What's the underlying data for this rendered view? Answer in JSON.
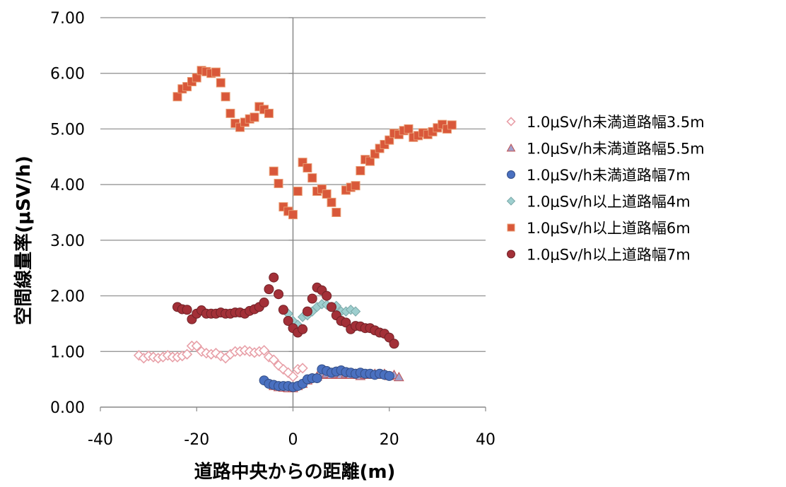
{
  "chart_data": {
    "type": "scatter",
    "xlabel": "道路中央からの距離(m)",
    "ylabel": "空間線量率(μSV/h)",
    "xlim": [
      -40,
      40
    ],
    "ylim": [
      0,
      7
    ],
    "x_ticks": [
      "-40",
      "-20",
      "0",
      "20",
      "40"
    ],
    "y_ticks": [
      "0.00",
      "1.00",
      "2.00",
      "3.00",
      "4.00",
      "5.00",
      "6.00",
      "7.00"
    ],
    "grid": "horizontal",
    "legend_position": "right",
    "series": [
      {
        "name": "1.0μSv/h未満道路幅3.5m",
        "marker": "diamond-open",
        "color": "#e8a0a8",
        "x": [
          -32,
          -31,
          -30,
          -29,
          -28,
          -27,
          -26,
          -25,
          -24,
          -23,
          -22,
          -21,
          -20,
          -19,
          -18,
          -17,
          -16,
          -15,
          -14,
          -13,
          -12,
          -11,
          -10,
          -9,
          -8,
          -7,
          -6,
          -5,
          -4,
          -3,
          -2,
          -1,
          0,
          1,
          2
        ],
        "y": [
          0.93,
          0.88,
          0.92,
          0.9,
          0.88,
          0.9,
          0.93,
          0.9,
          0.9,
          0.92,
          0.95,
          1.1,
          1.1,
          1.0,
          0.97,
          0.95,
          0.97,
          0.92,
          0.88,
          0.95,
          1.0,
          1.0,
          1.02,
          1.0,
          0.98,
          1.0,
          1.02,
          0.9,
          0.85,
          0.75,
          0.68,
          0.62,
          0.55,
          0.68,
          0.7
        ]
      },
      {
        "name": "1.0μSv/h未満道路幅5.5m",
        "marker": "triangle",
        "color": "#a0a0cc",
        "x": [
          -4,
          -3,
          -2,
          -1,
          0,
          1,
          2,
          3,
          4,
          5,
          6,
          7,
          8,
          9,
          10,
          11,
          12,
          13,
          14,
          15,
          16,
          17,
          18,
          19,
          20,
          21,
          22
        ],
        "y": [
          0.38,
          0.36,
          0.35,
          0.34,
          0.34,
          0.38,
          0.42,
          0.48,
          0.52,
          0.55,
          0.58,
          0.6,
          0.58,
          0.6,
          0.58,
          0.6,
          0.58,
          0.6,
          0.56,
          0.58,
          0.58,
          0.6,
          0.58,
          0.6,
          0.56,
          0.58,
          0.54
        ]
      },
      {
        "name": "1.0μSv/h未満道路幅7m",
        "marker": "circle",
        "color": "#4a70c0",
        "x": [
          -6,
          -5,
          -4,
          -3,
          -2,
          -1,
          0,
          1,
          2,
          3,
          4,
          5,
          6,
          7,
          8,
          9,
          10,
          11,
          12,
          13,
          14,
          15,
          16,
          17,
          18,
          19,
          20
        ],
        "y": [
          0.48,
          0.42,
          0.4,
          0.38,
          0.38,
          0.38,
          0.36,
          0.38,
          0.42,
          0.5,
          0.52,
          0.52,
          0.68,
          0.65,
          0.62,
          0.64,
          0.66,
          0.63,
          0.62,
          0.6,
          0.62,
          0.6,
          0.6,
          0.58,
          0.6,
          0.58,
          0.56
        ]
      },
      {
        "name": "1.0μSv/h以上道路幅4m",
        "marker": "diamond",
        "color": "#9ecfcf",
        "x": [
          -1,
          0,
          1,
          2,
          3,
          4,
          5,
          6,
          7,
          8,
          9,
          10,
          11,
          12,
          13
        ],
        "y": [
          1.68,
          1.55,
          1.48,
          1.62,
          1.65,
          1.72,
          1.8,
          1.85,
          1.84,
          1.8,
          1.82,
          1.72,
          1.72,
          1.75,
          1.72
        ]
      },
      {
        "name": "1.0μSv/h以上道路幅6m",
        "marker": "square",
        "color": "#d9583a",
        "x": [
          -24,
          -23,
          -22,
          -21,
          -20,
          -19,
          -18,
          -17,
          -16,
          -15,
          -14,
          -13,
          -12,
          -11,
          -10,
          -9,
          -8,
          -7,
          -6,
          -5,
          -4,
          -3,
          -2,
          -1,
          0,
          1,
          2,
          3,
          4,
          5,
          6,
          7,
          8,
          9,
          11,
          12,
          13,
          14,
          15,
          16,
          17,
          18,
          19,
          20,
          21,
          22,
          23,
          24,
          25,
          26,
          27,
          28,
          29,
          30,
          31,
          32,
          33
        ],
        "y": [
          5.58,
          5.72,
          5.76,
          5.85,
          5.92,
          6.05,
          6.03,
          6.0,
          6.02,
          5.83,
          5.58,
          5.28,
          5.1,
          5.03,
          5.12,
          5.18,
          5.21,
          5.4,
          5.35,
          5.28,
          4.24,
          4.02,
          3.6,
          3.52,
          3.46,
          3.88,
          4.4,
          4.3,
          4.12,
          3.88,
          3.92,
          3.83,
          3.68,
          3.5,
          3.9,
          3.95,
          3.98,
          4.25,
          4.45,
          4.42,
          4.55,
          4.65,
          4.72,
          4.8,
          4.92,
          4.9,
          4.97,
          5.0,
          4.85,
          4.88,
          4.93,
          4.9,
          4.95,
          5.02,
          5.08,
          5.0,
          5.07
        ]
      },
      {
        "name": "1.0μSv/h以上道路幅7m",
        "marker": "circle",
        "color": "#a33038",
        "x": [
          -24,
          -23,
          -22,
          -21,
          -20,
          -19,
          -18,
          -17,
          -16,
          -15,
          -14,
          -13,
          -12,
          -11,
          -10,
          -9,
          -8,
          -7,
          -6,
          -5,
          -4,
          -3,
          -2,
          -1,
          0,
          1,
          2,
          3,
          4,
          5,
          6,
          7,
          8,
          9,
          10,
          11,
          12,
          13,
          14,
          15,
          16,
          17,
          18,
          19,
          20,
          21
        ],
        "y": [
          1.8,
          1.76,
          1.75,
          1.58,
          1.68,
          1.74,
          1.68,
          1.68,
          1.68,
          1.7,
          1.68,
          1.68,
          1.7,
          1.7,
          1.68,
          1.73,
          1.76,
          1.8,
          1.88,
          2.12,
          2.33,
          2.03,
          1.75,
          1.55,
          1.42,
          1.34,
          1.4,
          1.72,
          1.95,
          2.15,
          2.1,
          2.0,
          1.8,
          1.65,
          1.55,
          1.52,
          1.4,
          1.46,
          1.45,
          1.42,
          1.42,
          1.38,
          1.34,
          1.32,
          1.25,
          1.14
        ]
      }
    ]
  }
}
